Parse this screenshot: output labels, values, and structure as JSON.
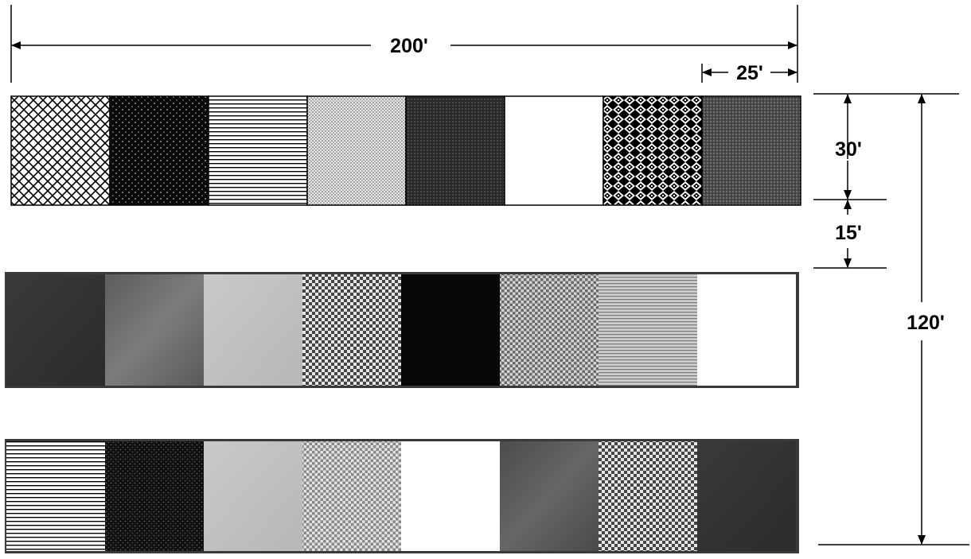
{
  "dimensions": {
    "total_width": "200'",
    "plot_width": "25'",
    "row_depth": "30'",
    "row_gap": "15'",
    "total_length": "120'"
  },
  "rows": [
    {
      "name": "row-1",
      "plots": [
        "diamond-crosshatch",
        "dark-diagonal",
        "horizontal-lines",
        "light-dots",
        "dark-stipple",
        "white",
        "scale-pattern",
        "medium-dark-stipple"
      ]
    },
    {
      "name": "row-2",
      "plots": [
        "dark-gray",
        "medium-gray",
        "light-gray",
        "checker",
        "black",
        "light-checker",
        "horizontal-lines-light",
        "white"
      ]
    },
    {
      "name": "row-3",
      "plots": [
        "horizontal-lines",
        "dark-dotted",
        "light-gray",
        "checker-light",
        "white",
        "medium-dark-gray",
        "checker",
        "dark-gray"
      ]
    }
  ]
}
